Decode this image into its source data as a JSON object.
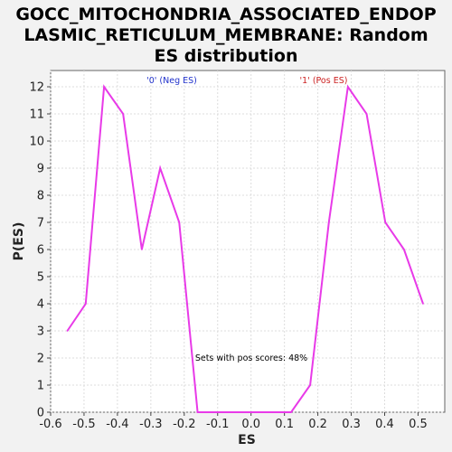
{
  "chart_data": {
    "type": "line",
    "title_lines": [
      "GOCC_MITOCHONDRIA_ASSOCIATED_ENDOP",
      "LASMIC_RETICULUM_MEMBRANE: Random",
      "ES distribution"
    ],
    "xlabel": "ES",
    "ylabel": "P(ES)",
    "xlim": [
      -0.6,
      0.58
    ],
    "ylim": [
      0,
      12.6
    ],
    "xticks": [
      -0.6,
      -0.5,
      -0.4,
      -0.3,
      -0.2,
      -0.1,
      0.0,
      0.1,
      0.2,
      0.3,
      0.4,
      0.5
    ],
    "xtick_labels": [
      "-0.6",
      "-0.5",
      "-0.4",
      "-0.3",
      "-0.2",
      "-0.1",
      "0.0",
      "0.1",
      "0.2",
      "0.3",
      "0.4",
      "0.5"
    ],
    "yticks": [
      0,
      1,
      2,
      3,
      4,
      5,
      6,
      7,
      8,
      9,
      10,
      11,
      12
    ],
    "ytick_labels": [
      "0",
      "1",
      "2",
      "3",
      "4",
      "5",
      "6",
      "7",
      "8",
      "9",
      "10",
      "11",
      "12"
    ],
    "grid": true,
    "series": [
      {
        "color": "#e83ae8",
        "x": [
          -0.55,
          -0.495,
          -0.44,
          -0.383,
          -0.327,
          -0.272,
          -0.215,
          -0.16,
          -0.104,
          -0.048,
          0.008,
          0.063,
          0.12,
          0.177,
          0.233,
          0.29,
          0.346,
          0.402,
          0.458,
          0.515
        ],
        "y": [
          3,
          4,
          12,
          11,
          6,
          9,
          7,
          0,
          0,
          0,
          0,
          0,
          0,
          1,
          7,
          12,
          11,
          7,
          6,
          4
        ]
      }
    ],
    "annotations": [
      {
        "text": "'0' (Neg ES)",
        "color": "#2233cc"
      },
      {
        "text": "'1' (Pos ES)",
        "color": "#cc2222"
      },
      {
        "text": "Sets with pos scores: 48%",
        "color": "#000000"
      }
    ]
  }
}
